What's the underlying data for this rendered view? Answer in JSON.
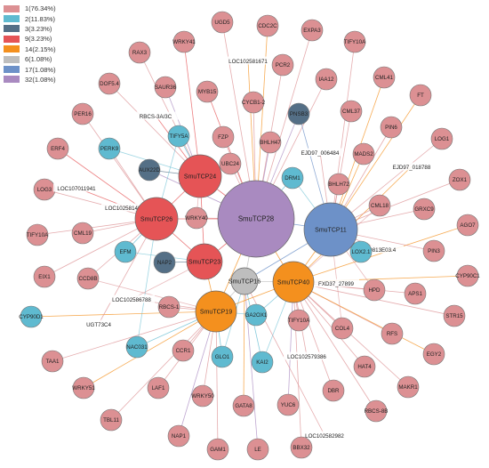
{
  "legend": [
    {
      "label": "1(76.34%)",
      "color": "#dc9093"
    },
    {
      "label": "2(11.83%)",
      "color": "#5fbad0"
    },
    {
      "label": "3(3.23%)",
      "color": "#546f86"
    },
    {
      "label": "9(3.23%)",
      "color": "#e55456"
    },
    {
      "label": "14(2.15%)",
      "color": "#f4901e"
    },
    {
      "label": "6(1.08%)",
      "color": "#bebebe"
    },
    {
      "label": "17(1.08%)",
      "color": "#6d91c8"
    },
    {
      "label": "32(1.08%)",
      "color": "#a98ac0"
    }
  ],
  "hubs": [
    {
      "id": "SmuTCP28",
      "cluster": 7
    },
    {
      "id": "SmuTCP11",
      "cluster": 6
    },
    {
      "id": "SmuTCP24",
      "cluster": 3
    },
    {
      "id": "SmuTCP26",
      "cluster": 3
    },
    {
      "id": "SmuTCP23",
      "cluster": 3
    },
    {
      "id": "SmuTCP40",
      "cluster": 4
    },
    {
      "id": "SmuTCP19",
      "cluster": 4
    },
    {
      "id": "SmuTCP16",
      "cluster": 5
    }
  ],
  "nodes": [
    {
      "id": "UGD5",
      "cluster": 0
    },
    {
      "id": "CDC2C",
      "cluster": 0
    },
    {
      "id": "EXPA3",
      "cluster": 0
    },
    {
      "id": "WRKY41",
      "cluster": 0
    },
    {
      "id": "RAX3",
      "cluster": 0
    },
    {
      "id": "TIFY10A",
      "cluster": 0,
      "key": "TIFY10A-1"
    },
    {
      "id": "LOC102581671",
      "cluster": 0
    },
    {
      "id": "PCR2",
      "cluster": 0
    },
    {
      "id": "DOF5.4",
      "cluster": 0
    },
    {
      "id": "SAUR36",
      "cluster": 0
    },
    {
      "id": "MYB15",
      "cluster": 0
    },
    {
      "id": "IAA12",
      "cluster": 0
    },
    {
      "id": "CML41",
      "cluster": 0
    },
    {
      "id": "RBCS-3A/3C",
      "cluster": 0
    },
    {
      "id": "CYCB1-2",
      "cluster": 0
    },
    {
      "id": "PNSB3",
      "cluster": 2
    },
    {
      "id": "CML37",
      "cluster": 0
    },
    {
      "id": "FT",
      "cluster": 0
    },
    {
      "id": "PER16",
      "cluster": 0
    },
    {
      "id": "TIFY5A",
      "cluster": 1
    },
    {
      "id": "FZP",
      "cluster": 0
    },
    {
      "id": "BHLH47",
      "cluster": 0
    },
    {
      "id": "PIN6",
      "cluster": 0
    },
    {
      "id": "EJD97_006484",
      "cluster": 0
    },
    {
      "id": "LOG1",
      "cluster": 0
    },
    {
      "id": "ERF4",
      "cluster": 0
    },
    {
      "id": "PERK9",
      "cluster": 1
    },
    {
      "id": "MADS2",
      "cluster": 0
    },
    {
      "id": "EJD97_018788",
      "cluster": 0
    },
    {
      "id": "AUX22D",
      "cluster": 2
    },
    {
      "id": "UBC24",
      "cluster": 0
    },
    {
      "id": "DRM1",
      "cluster": 1
    },
    {
      "id": "BHLH72",
      "cluster": 0
    },
    {
      "id": "ZOX1",
      "cluster": 0
    },
    {
      "id": "LOG3",
      "cluster": 0
    },
    {
      "id": "LOC107011941",
      "cluster": 0
    },
    {
      "id": "LOC102581404",
      "cluster": 0
    },
    {
      "id": "WRKY40",
      "cluster": 0
    },
    {
      "id": "CML18",
      "cluster": 0
    },
    {
      "id": "GRXC9",
      "cluster": 0
    },
    {
      "id": "TIFY10A",
      "cluster": 0,
      "key": "TIFY10A-2"
    },
    {
      "id": "CML19",
      "cluster": 0
    },
    {
      "id": "AGO7",
      "cluster": 0
    },
    {
      "id": "H0813E03.4",
      "cluster": 0
    },
    {
      "id": "LOX2.1",
      "cluster": 1
    },
    {
      "id": "PIN3",
      "cluster": 0
    },
    {
      "id": "EFM",
      "cluster": 1
    },
    {
      "id": "NAP2",
      "cluster": 2
    },
    {
      "id": "EIX1",
      "cluster": 0
    },
    {
      "id": "CCD8B",
      "cluster": 0
    },
    {
      "id": "FXD37_27899",
      "cluster": 0
    },
    {
      "id": "CYP90C1",
      "cluster": 0,
      "key": "CYP90C1-R"
    },
    {
      "id": "LOC102586788",
      "cluster": 0
    },
    {
      "id": "HPD",
      "cluster": 0
    },
    {
      "id": "APS1",
      "cluster": 0
    },
    {
      "id": "RBCS-1",
      "cluster": 0
    },
    {
      "id": "GA2OX1",
      "cluster": 1
    },
    {
      "id": "TIFY10A",
      "cluster": 0,
      "key": "TIFY10A-3"
    },
    {
      "id": "CYP90D1",
      "cluster": 1
    },
    {
      "id": "UGT73C4",
      "cluster": 0
    },
    {
      "id": "STR15",
      "cluster": 0
    },
    {
      "id": "COL4",
      "cluster": 0
    },
    {
      "id": "NAC031",
      "cluster": 1
    },
    {
      "id": "CCR1",
      "cluster": 0
    },
    {
      "id": "RFS",
      "cluster": 0
    },
    {
      "id": "TAA1",
      "cluster": 0
    },
    {
      "id": "GLO1",
      "cluster": 1
    },
    {
      "id": "LOC102579386",
      "cluster": 0
    },
    {
      "id": "EGY2",
      "cluster": 0
    },
    {
      "id": "KAI2",
      "cluster": 1
    },
    {
      "id": "HAT4",
      "cluster": 0
    },
    {
      "id": "WRKY51",
      "cluster": 0
    },
    {
      "id": "LAF1",
      "cluster": 0
    },
    {
      "id": "MAKR1",
      "cluster": 0
    },
    {
      "id": "DBR",
      "cluster": 0
    },
    {
      "id": "WRKY50",
      "cluster": 0
    },
    {
      "id": "TBL11",
      "cluster": 0
    },
    {
      "id": "GATA8",
      "cluster": 0
    },
    {
      "id": "YUC6",
      "cluster": 0
    },
    {
      "id": "RBCS-8B",
      "cluster": 0
    },
    {
      "id": "NAP1",
      "cluster": 0
    },
    {
      "id": "LOC102582982",
      "cluster": 0
    },
    {
      "id": "GAM1",
      "cluster": 0
    },
    {
      "id": "LE",
      "cluster": 0
    },
    {
      "id": "BBX32",
      "cluster": 0
    }
  ]
}
